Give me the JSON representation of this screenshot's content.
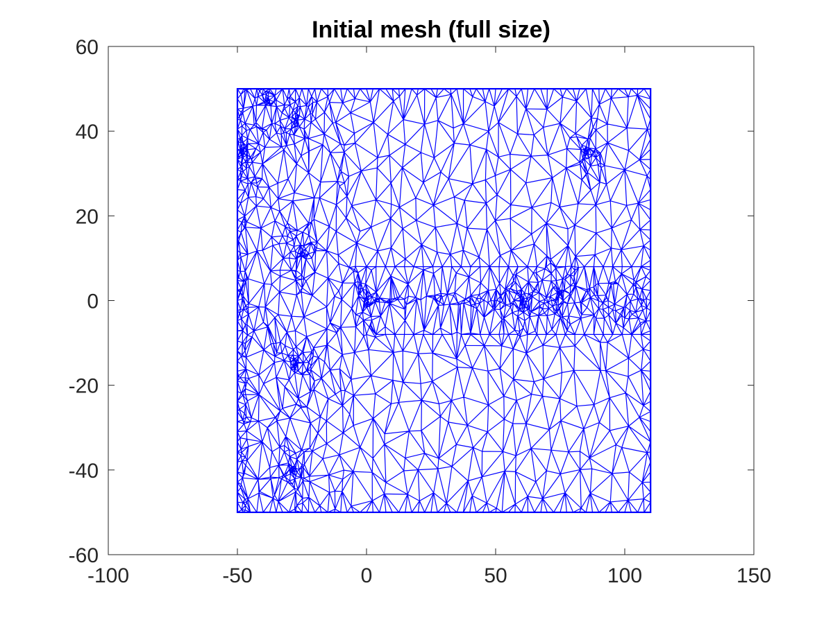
{
  "chart_data": {
    "type": "triangular-mesh",
    "title": "Initial mesh (full size)",
    "xlabel": "",
    "ylabel": "",
    "xlim": [
      -100,
      150
    ],
    "ylim": [
      -60,
      60
    ],
    "xticks": [
      -100,
      -50,
      0,
      50,
      100,
      150
    ],
    "yticks": [
      -60,
      -40,
      -20,
      0,
      20,
      40,
      60
    ],
    "xtick_labels": [
      "-100",
      "-50",
      "0",
      "50",
      "100",
      "150"
    ],
    "ytick_labels": [
      "-60",
      "-40",
      "-20",
      "0",
      "20",
      "40",
      "60"
    ],
    "grid": false,
    "legend": "none",
    "domain": {
      "x": [
        -50,
        110
      ],
      "y": [
        -50,
        50
      ]
    },
    "refinement_regions": [
      {
        "x": -25,
        "y": 11
      },
      {
        "x": 0,
        "y": 0
      },
      {
        "x": -28,
        "y": -15
      },
      {
        "x": -29,
        "y": -40
      },
      {
        "x": -48,
        "y": 35
      },
      {
        "x": -38,
        "y": 47
      },
      {
        "x": -27,
        "y": 43
      },
      {
        "x": 85,
        "y": 35
      },
      {
        "x": 75,
        "y": 2
      },
      {
        "x": 60,
        "y": 0
      }
    ],
    "colors": {
      "mesh": "#0000ff",
      "axes": "#262626",
      "background": "#ffffff"
    }
  }
}
